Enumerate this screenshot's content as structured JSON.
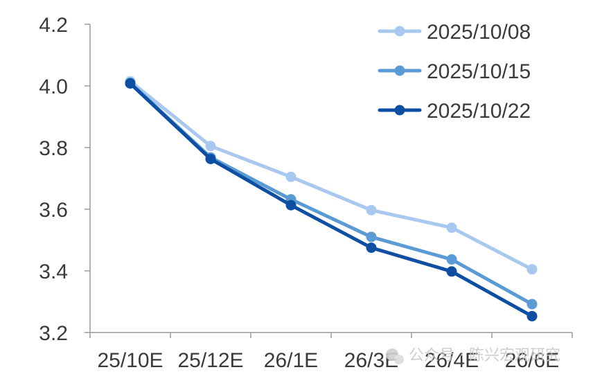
{
  "chart_data": {
    "type": "line",
    "title": "",
    "xlabel": "",
    "ylabel": "",
    "categories": [
      "25/10E",
      "25/12E",
      "26/1E",
      "26/3E",
      "26/4E",
      "26/6E"
    ],
    "ylim": [
      3.2,
      4.2
    ],
    "yticks": [
      "3.2",
      "3.4",
      "3.6",
      "3.8",
      "4.0",
      "4.2"
    ],
    "grid": false,
    "legend_position": "top-right",
    "series": [
      {
        "name": "2025/10/08",
        "color": "#a9c8f0",
        "values": [
          4.015,
          3.805,
          3.705,
          3.597,
          3.54,
          3.405
        ]
      },
      {
        "name": "2025/10/15",
        "color": "#5b9bd5",
        "values": [
          4.01,
          3.768,
          3.632,
          3.51,
          3.437,
          3.292
        ]
      },
      {
        "name": "2025/10/22",
        "color": "#0f4fa3",
        "values": [
          4.008,
          3.763,
          3.613,
          3.475,
          3.398,
          3.253
        ]
      }
    ]
  },
  "watermark": {
    "text": "公众号 · 陈兴宏观研究",
    "icon": "wechat-icon"
  }
}
